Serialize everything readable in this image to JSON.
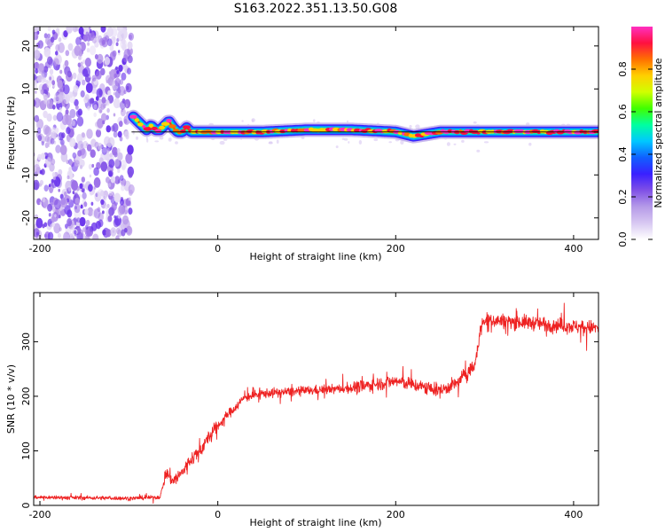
{
  "title": "S163.2022.351.13.50.G08",
  "chart_data": [
    {
      "type": "heatmap",
      "xlabel": "Height of straight line (km)",
      "ylabel": "Frequency (Hz)",
      "xlim": [
        -207,
        428
      ],
      "ylim": [
        -25,
        24.5
      ],
      "xticks": [
        -200,
        0,
        200,
        400
      ],
      "yticks": [
        -20,
        -10,
        0,
        10,
        20
      ],
      "colorbar": {
        "label": "Normalized spectral amplitude",
        "range": [
          0,
          1
        ],
        "ticks": [
          0.0,
          0.2,
          0.4,
          0.6,
          0.8
        ],
        "colors": [
          "#ffffff",
          "#d8c8f2",
          "#b59ae8",
          "#8050e6",
          "#3a20ff",
          "#1060ff",
          "#00c8ff",
          "#00ffa0",
          "#40ff00",
          "#d0ff00",
          "#ffd000",
          "#ff7000",
          "#ff1040",
          "#ff30c0"
        ]
      },
      "noise_region_x": [
        -207,
        -97
      ],
      "ridge": {
        "x": [
          -95,
          -90,
          -85,
          -80,
          -75,
          -70,
          -65,
          -60,
          -55,
          -50,
          -45,
          -40,
          -35,
          -30,
          -25,
          -20,
          0,
          50,
          100,
          150,
          200,
          210,
          220,
          250,
          300,
          350,
          400,
          428
        ],
        "frequency_hz": [
          3.5,
          2.5,
          1.5,
          0.5,
          1.5,
          0.5,
          0.5,
          1.5,
          2.5,
          1.0,
          0.0,
          0.0,
          1.0,
          0.0,
          0.0,
          0.0,
          0.0,
          0.0,
          0.5,
          0.5,
          0.0,
          -0.5,
          -1.0,
          0.0,
          0.0,
          0.0,
          0.0,
          0.0
        ]
      },
      "grid": false
    },
    {
      "type": "line",
      "xlabel": "Height of straight line (km)",
      "ylabel": "SNR (10 * v/v)",
      "xlim": [
        -207,
        428
      ],
      "ylim": [
        0,
        390
      ],
      "xticks": [
        -200,
        0,
        200,
        400
      ],
      "yticks": [
        0,
        100,
        200,
        300
      ],
      "color": "#ee2222",
      "grid": false,
      "series": [
        {
          "x": [
            -207,
            -150,
            -100,
            -65,
            -58,
            -50,
            -40,
            -30,
            -20,
            -10,
            0,
            10,
            20,
            30,
            50,
            100,
            150,
            200,
            250,
            270,
            280,
            289,
            295,
            300,
            350,
            400,
            428
          ],
          "values": [
            15,
            14,
            13,
            15,
            60,
            45,
            60,
            85,
            100,
            125,
            145,
            165,
            180,
            198,
            205,
            210,
            215,
            228,
            210,
            225,
            245,
            255,
            320,
            340,
            335,
            328,
            325
          ]
        }
      ]
    }
  ]
}
